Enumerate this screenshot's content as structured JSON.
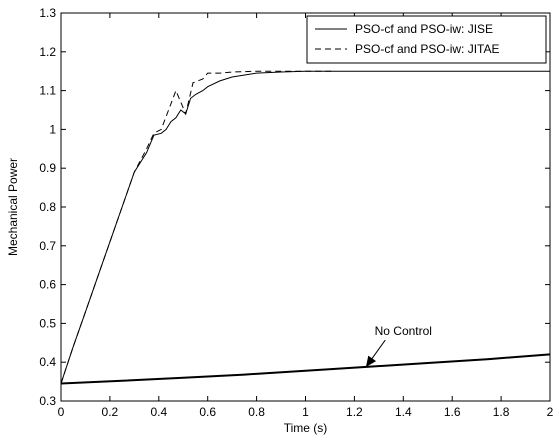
{
  "chart_data": {
    "type": "line",
    "xlabel": "Time (s)",
    "ylabel": "Mechanical Power",
    "xlim": [
      0,
      2
    ],
    "ylim": [
      0.3,
      1.3
    ],
    "x_ticks": [
      "0",
      "0.2",
      "0.4",
      "0.6",
      "0.8",
      "1",
      "1.2",
      "1.4",
      "1.6",
      "1.8",
      "2"
    ],
    "y_ticks": [
      "0.3",
      "0.4",
      "0.5",
      "0.6",
      "0.7",
      "0.8",
      "0.9",
      "1",
      "1.1",
      "1.2",
      "1.3"
    ],
    "grid": false,
    "legend_position": "top-right",
    "series": [
      {
        "name": "PSO-cf and PSO-iw: JISE",
        "line_style": "solid",
        "color": "#000000",
        "points": [
          [
            0,
            0.345
          ],
          [
            0.05,
            0.44
          ],
          [
            0.1,
            0.53
          ],
          [
            0.15,
            0.62
          ],
          [
            0.2,
            0.71
          ],
          [
            0.25,
            0.8
          ],
          [
            0.3,
            0.89
          ],
          [
            0.35,
            0.94
          ],
          [
            0.38,
            0.985
          ],
          [
            0.41,
            0.99
          ],
          [
            0.43,
            1.0
          ],
          [
            0.45,
            1.02
          ],
          [
            0.47,
            1.03
          ],
          [
            0.49,
            1.05
          ],
          [
            0.51,
            1.04
          ],
          [
            0.53,
            1.08
          ],
          [
            0.55,
            1.09
          ],
          [
            0.58,
            1.1
          ],
          [
            0.6,
            1.11
          ],
          [
            0.65,
            1.125
          ],
          [
            0.7,
            1.135
          ],
          [
            0.8,
            1.145
          ],
          [
            0.9,
            1.148
          ],
          [
            1.0,
            1.15
          ],
          [
            1.2,
            1.15
          ],
          [
            1.5,
            1.15
          ],
          [
            2.0,
            1.15
          ]
        ]
      },
      {
        "name": "PSO-cf and PSO-iw: JITAE",
        "line_style": "dashed",
        "color": "#000000",
        "points": [
          [
            0,
            0.345
          ],
          [
            0.05,
            0.44
          ],
          [
            0.1,
            0.53
          ],
          [
            0.15,
            0.62
          ],
          [
            0.2,
            0.71
          ],
          [
            0.25,
            0.8
          ],
          [
            0.3,
            0.89
          ],
          [
            0.35,
            0.95
          ],
          [
            0.38,
            0.99
          ],
          [
            0.41,
            1.0
          ],
          [
            0.44,
            1.05
          ],
          [
            0.47,
            1.1
          ],
          [
            0.49,
            1.07
          ],
          [
            0.51,
            1.04
          ],
          [
            0.54,
            1.12
          ],
          [
            0.56,
            1.125
          ],
          [
            0.58,
            1.13
          ],
          [
            0.6,
            1.145
          ],
          [
            0.65,
            1.145
          ],
          [
            0.7,
            1.148
          ],
          [
            0.8,
            1.15
          ],
          [
            0.9,
            1.15
          ],
          [
            1.0,
            1.15
          ],
          [
            1.12,
            1.15
          ]
        ]
      },
      {
        "name": "No Control",
        "line_style": "solid-thick",
        "color": "#000000",
        "points": [
          [
            0,
            0.345
          ],
          [
            0.25,
            0.352
          ],
          [
            0.5,
            0.36
          ],
          [
            0.75,
            0.368
          ],
          [
            1.0,
            0.378
          ],
          [
            1.25,
            0.388
          ],
          [
            1.5,
            0.398
          ],
          [
            1.75,
            0.408
          ],
          [
            2.0,
            0.42
          ]
        ]
      }
    ],
    "legend": [
      {
        "label": "PSO-cf and PSO-iw: JISE",
        "line_style": "solid"
      },
      {
        "label": "PSO-cf and PSO-iw: JITAE",
        "line_style": "dashed"
      }
    ],
    "annotations": [
      {
        "text": "No Control",
        "text_at": [
          1.4,
          0.47
        ],
        "arrow_to": [
          1.25,
          0.39
        ]
      }
    ]
  }
}
